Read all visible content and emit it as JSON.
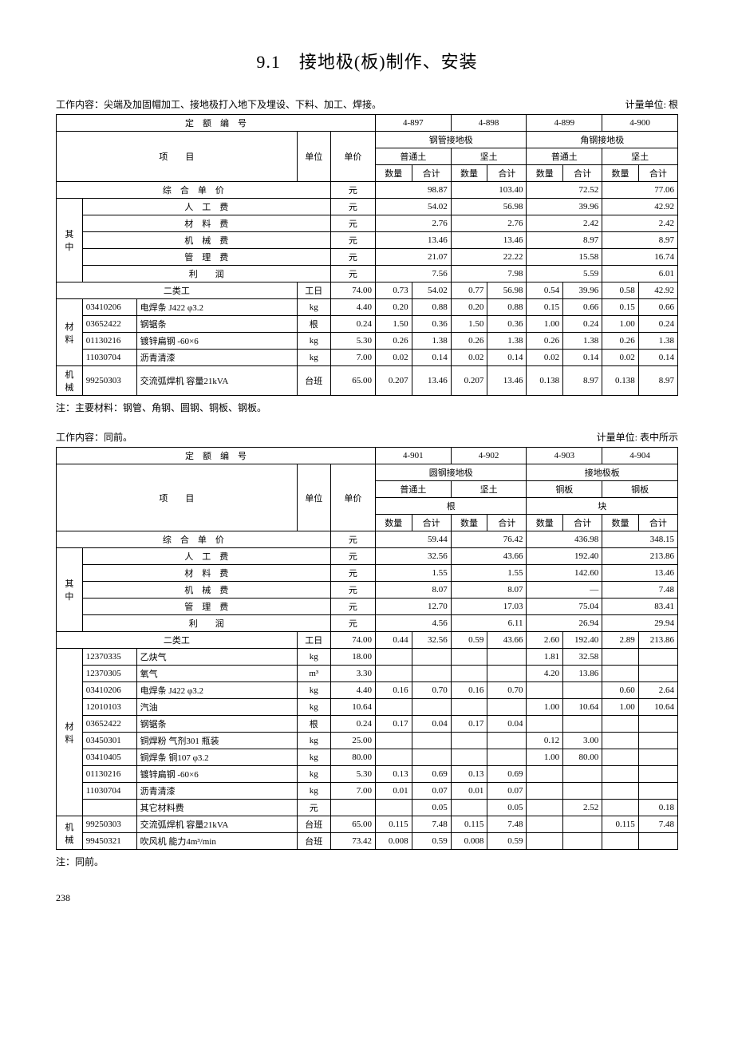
{
  "title": "9.1　接地极(板)制作、安装",
  "page_number": "238",
  "table1": {
    "work_desc": "工作内容：尖端及加固帽加工、接地极打入地下及埋设、下料、加工、焊接。",
    "unit_label": "计量单位: 根",
    "header_code": "定　额　编　号",
    "header_item": "项　　目",
    "header_unit": "单位",
    "header_price": "单价",
    "codes": [
      "4-897",
      "4-898",
      "4-899",
      "4-900"
    ],
    "group_a": "钢管接地极",
    "group_b": "角钢接地极",
    "sub_a1": "普通土",
    "sub_a2": "坚土",
    "sub_b1": "普通土",
    "sub_b2": "坚土",
    "qty": "数量",
    "sum": "合计",
    "comp_label": "综　合　单　价",
    "comp_unit": "元",
    "comp_vals": [
      "98.87",
      "103.40",
      "72.52",
      "77.06"
    ],
    "break_side": "其中",
    "break_rows": [
      {
        "label": "人　工　费",
        "u": "元",
        "v": [
          "54.02",
          "56.98",
          "39.96",
          "42.92"
        ]
      },
      {
        "label": "材　料　费",
        "u": "元",
        "v": [
          "2.76",
          "2.76",
          "2.42",
          "2.42"
        ]
      },
      {
        "label": "机　械　费",
        "u": "元",
        "v": [
          "13.46",
          "13.46",
          "8.97",
          "8.97"
        ]
      },
      {
        "label": "管　理　费",
        "u": "元",
        "v": [
          "21.07",
          "22.22",
          "15.58",
          "16.74"
        ]
      },
      {
        "label": "利　　润",
        "u": "元",
        "v": [
          "7.56",
          "7.98",
          "5.59",
          "6.01"
        ]
      }
    ],
    "labor": {
      "name": "二类工",
      "unit": "工日",
      "price": "74.00",
      "cells": [
        "0.73",
        "54.02",
        "0.77",
        "56.98",
        "0.54",
        "39.96",
        "0.58",
        "42.92"
      ]
    },
    "mat_side": "材料",
    "materials": [
      {
        "code": "03410206",
        "name": "电焊条 J422 φ3.2",
        "unit": "kg",
        "price": "4.40",
        "cells": [
          "0.20",
          "0.88",
          "0.20",
          "0.88",
          "0.15",
          "0.66",
          "0.15",
          "0.66"
        ]
      },
      {
        "code": "03652422",
        "name": "钢锯条",
        "unit": "根",
        "price": "0.24",
        "cells": [
          "1.50",
          "0.36",
          "1.50",
          "0.36",
          "1.00",
          "0.24",
          "1.00",
          "0.24"
        ]
      },
      {
        "code": "01130216",
        "name": "镀锌扁钢 -60×6",
        "unit": "kg",
        "price": "5.30",
        "cells": [
          "0.26",
          "1.38",
          "0.26",
          "1.38",
          "0.26",
          "1.38",
          "0.26",
          "1.38"
        ]
      },
      {
        "code": "11030704",
        "name": "沥青清漆",
        "unit": "kg",
        "price": "7.00",
        "cells": [
          "0.02",
          "0.14",
          "0.02",
          "0.14",
          "0.02",
          "0.14",
          "0.02",
          "0.14"
        ]
      }
    ],
    "mach_side": "机械",
    "machines": [
      {
        "code": "99250303",
        "name": "交流弧焊机 容量21kVA",
        "unit": "台班",
        "price": "65.00",
        "cells": [
          "0.207",
          "13.46",
          "0.207",
          "13.46",
          "0.138",
          "8.97",
          "0.138",
          "8.97"
        ]
      }
    ],
    "note": "注：主要材料：钢管、角钢、圆钢、铜板、钢板。"
  },
  "table2": {
    "work_desc": "工作内容：同前。",
    "unit_label": "计量单位: 表中所示",
    "codes": [
      "4-901",
      "4-902",
      "4-903",
      "4-904"
    ],
    "group_a": "圆钢接地极",
    "group_b": "接地极板",
    "sub_a1": "普通土",
    "sub_a2": "坚土",
    "sub_b1": "铜板",
    "sub_b2": "钢板",
    "mu_a": "根",
    "mu_b": "块",
    "comp_vals": [
      "59.44",
      "76.42",
      "436.98",
      "348.15"
    ],
    "break_rows": [
      {
        "label": "人　工　费",
        "u": "元",
        "v": [
          "32.56",
          "43.66",
          "192.40",
          "213.86"
        ]
      },
      {
        "label": "材　料　费",
        "u": "元",
        "v": [
          "1.55",
          "1.55",
          "142.60",
          "13.46"
        ]
      },
      {
        "label": "机　械　费",
        "u": "元",
        "v": [
          "8.07",
          "8.07",
          "—",
          "7.48"
        ]
      },
      {
        "label": "管　理　费",
        "u": "元",
        "v": [
          "12.70",
          "17.03",
          "75.04",
          "83.41"
        ]
      },
      {
        "label": "利　　润",
        "u": "元",
        "v": [
          "4.56",
          "6.11",
          "26.94",
          "29.94"
        ]
      }
    ],
    "labor": {
      "name": "二类工",
      "unit": "工日",
      "price": "74.00",
      "cells": [
        "0.44",
        "32.56",
        "0.59",
        "43.66",
        "2.60",
        "192.40",
        "2.89",
        "213.86"
      ]
    },
    "materials": [
      {
        "code": "12370335",
        "name": "乙炔气",
        "unit": "kg",
        "price": "18.00",
        "cells": [
          "",
          "",
          "",
          "",
          "1.81",
          "32.58",
          "",
          ""
        ]
      },
      {
        "code": "12370305",
        "name": "氧气",
        "unit": "m³",
        "price": "3.30",
        "cells": [
          "",
          "",
          "",
          "",
          "4.20",
          "13.86",
          "",
          ""
        ]
      },
      {
        "code": "03410206",
        "name": "电焊条 J422 φ3.2",
        "unit": "kg",
        "price": "4.40",
        "cells": [
          "0.16",
          "0.70",
          "0.16",
          "0.70",
          "",
          "",
          "0.60",
          "2.64"
        ]
      },
      {
        "code": "12010103",
        "name": "汽油",
        "unit": "kg",
        "price": "10.64",
        "cells": [
          "",
          "",
          "",
          "",
          "1.00",
          "10.64",
          "1.00",
          "10.64"
        ]
      },
      {
        "code": "03652422",
        "name": "钢锯条",
        "unit": "根",
        "price": "0.24",
        "cells": [
          "0.17",
          "0.04",
          "0.17",
          "0.04",
          "",
          "",
          "",
          ""
        ]
      },
      {
        "code": "03450301",
        "name": "铜焊粉 气剂301 瓶装",
        "unit": "kg",
        "price": "25.00",
        "cells": [
          "",
          "",
          "",
          "",
          "0.12",
          "3.00",
          "",
          ""
        ]
      },
      {
        "code": "03410405",
        "name": "铜焊条 铜107 φ3.2",
        "unit": "kg",
        "price": "80.00",
        "cells": [
          "",
          "",
          "",
          "",
          "1.00",
          "80.00",
          "",
          ""
        ]
      },
      {
        "code": "01130216",
        "name": "镀锌扁钢 -60×6",
        "unit": "kg",
        "price": "5.30",
        "cells": [
          "0.13",
          "0.69",
          "0.13",
          "0.69",
          "",
          "",
          "",
          ""
        ]
      },
      {
        "code": "11030704",
        "name": "沥青清漆",
        "unit": "kg",
        "price": "7.00",
        "cells": [
          "0.01",
          "0.07",
          "0.01",
          "0.07",
          "",
          "",
          "",
          ""
        ]
      },
      {
        "code": "",
        "name": "其它材料费",
        "unit": "元",
        "price": "",
        "cells": [
          "",
          "0.05",
          "",
          "0.05",
          "",
          "2.52",
          "",
          "0.18"
        ]
      }
    ],
    "machines": [
      {
        "code": "99250303",
        "name": "交流弧焊机 容量21kVA",
        "unit": "台班",
        "price": "65.00",
        "cells": [
          "0.115",
          "7.48",
          "0.115",
          "7.48",
          "",
          "",
          "0.115",
          "7.48"
        ]
      },
      {
        "code": "99450321",
        "name": "吹风机 能力4m³/min",
        "unit": "台班",
        "price": "73.42",
        "cells": [
          "0.008",
          "0.59",
          "0.008",
          "0.59",
          "",
          "",
          "",
          ""
        ]
      }
    ],
    "note": "注：同前。"
  }
}
